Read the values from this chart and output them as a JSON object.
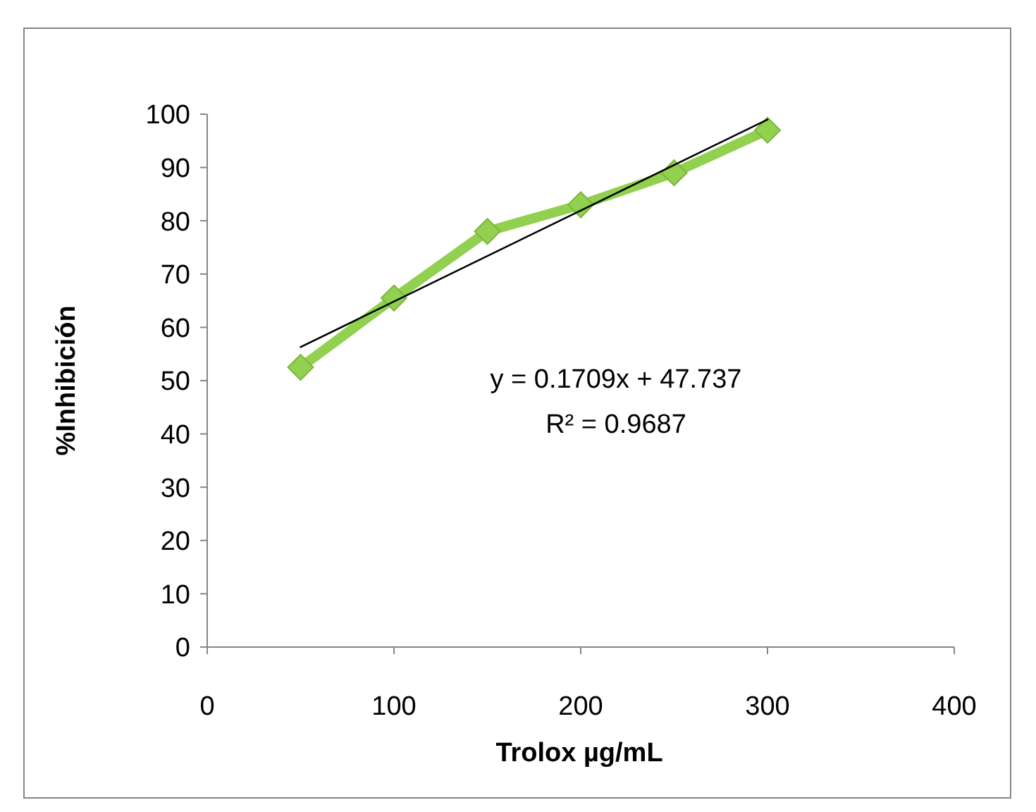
{
  "chart_data": {
    "type": "line",
    "xlabel": "Trolox µg/mL",
    "ylabel": "%Inhibición",
    "xlim": [
      0,
      400
    ],
    "xticks": [
      0,
      100,
      200,
      300,
      400
    ],
    "ylim": [
      0,
      100
    ],
    "yticks": [
      0,
      10,
      20,
      30,
      40,
      50,
      60,
      70,
      80,
      90,
      100
    ],
    "grid": false,
    "marker": "diamond",
    "line_style": "solid",
    "series": [
      {
        "color": "#92d050",
        "x": [
          50,
          100,
          150,
          200,
          250,
          300
        ],
        "values": [
          52.5,
          65.5,
          78,
          83,
          89,
          97
        ]
      },
      {
        "type": "line",
        "marker": "none",
        "color": "#000000",
        "x": [
          50,
          300
        ],
        "values": [
          56.3,
          99
        ]
      }
    ],
    "annotations": [
      "y = 0.1709x + 47.737",
      "R² = 0.9687"
    ]
  }
}
